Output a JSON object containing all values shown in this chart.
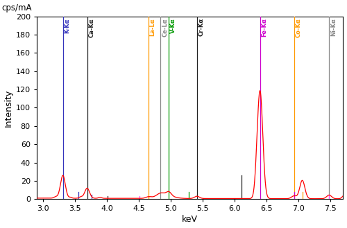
{
  "xlabel": "keV",
  "ylabel": "Intensity",
  "ylabel2": "cps/mA",
  "xlim": [
    2.9,
    7.7
  ],
  "ylim": [
    0,
    200
  ],
  "yticks": [
    0,
    20,
    40,
    60,
    80,
    100,
    120,
    140,
    160,
    180,
    200
  ],
  "xticks": [
    3.0,
    3.5,
    4.0,
    4.5,
    5.0,
    5.5,
    6.0,
    6.5,
    7.0,
    7.5
  ],
  "element_lines": [
    {
      "label": "K-Kα",
      "x": 3.31,
      "color": "#3333bb"
    },
    {
      "label": "Ca-Kα",
      "x": 3.69,
      "color": "#222222"
    },
    {
      "label": "La-Lα",
      "x": 4.65,
      "color": "#ff9900"
    },
    {
      "label": "Ce-Lα",
      "x": 4.84,
      "color": "#888888"
    },
    {
      "label": "V-Kα",
      "x": 4.97,
      "color": "#009900"
    },
    {
      "label": "Cr-Kα",
      "x": 5.41,
      "color": "#222222"
    },
    {
      "label": "Fe-Kα",
      "x": 6.4,
      "color": "#cc00cc"
    },
    {
      "label": "Co-Kα",
      "x": 6.93,
      "color": "#ff9900"
    },
    {
      "label": "Ni-Kα",
      "x": 7.48,
      "color": "#888888"
    }
  ],
  "small_ticks": [
    {
      "x": 3.55,
      "height": 8,
      "color": "#3333bb"
    },
    {
      "x": 3.76,
      "height": 5,
      "color": "#3333bb"
    },
    {
      "x": 4.01,
      "height": 3,
      "color": "#222222"
    },
    {
      "x": 4.51,
      "height": 3,
      "color": "#ff44ff"
    },
    {
      "x": 4.65,
      "height": 3,
      "color": "#ff9900"
    },
    {
      "x": 5.28,
      "height": 8,
      "color": "#009900"
    },
    {
      "x": 6.11,
      "height": 26,
      "color": "#222222"
    },
    {
      "x": 6.93,
      "height": 8,
      "color": "#cc00cc"
    },
    {
      "x": 7.06,
      "height": 8,
      "color": "#ff9900"
    },
    {
      "x": 7.48,
      "height": 5,
      "color": "#ff44ff"
    }
  ],
  "line_color": "#ff0000",
  "background_color": "#ffffff",
  "figsize": [
    5.0,
    3.29
  ],
  "dpi": 100
}
